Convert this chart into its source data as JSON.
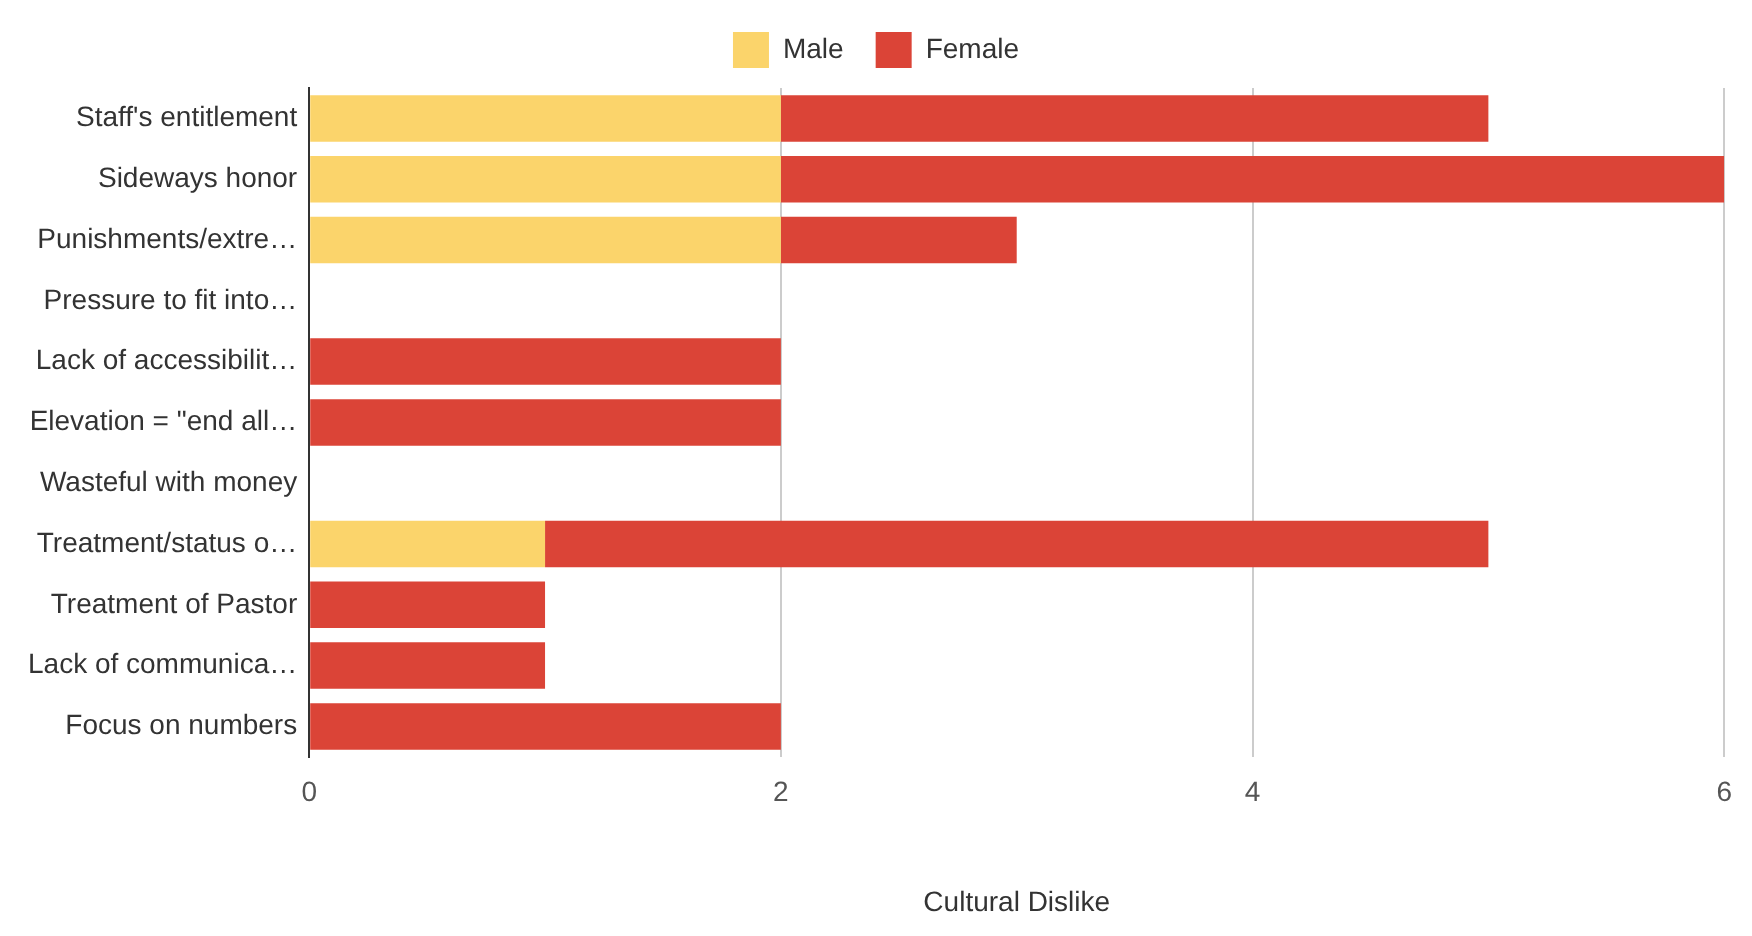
{
  "chart_data": {
    "type": "bar",
    "orientation": "horizontal",
    "stacked": true,
    "xlabel": "Cultural Dislike",
    "categories": [
      "Staff's entitlement",
      "Sideways honor",
      "Punishments/extre…",
      "Pressure to fit into…",
      "Lack of accessibilit…",
      "Elevation = \"end all…",
      "Wasteful with money",
      "Treatment/status o…",
      "Treatment of Pastor",
      "Lack of communica…",
      "Focus on numbers"
    ],
    "series": [
      {
        "name": "Male",
        "color": "#fbd46b",
        "values": [
          2,
          2,
          2,
          0,
          0,
          0,
          0,
          1,
          0,
          0,
          0
        ]
      },
      {
        "name": "Female",
        "color": "#db4437",
        "values": [
          3,
          4,
          1,
          0,
          2,
          2,
          0,
          4,
          1,
          1,
          2
        ]
      }
    ],
    "xlim": [
      0,
      6
    ],
    "xticks": [
      0,
      2,
      4,
      6
    ],
    "grid": "x",
    "legend": "top"
  }
}
